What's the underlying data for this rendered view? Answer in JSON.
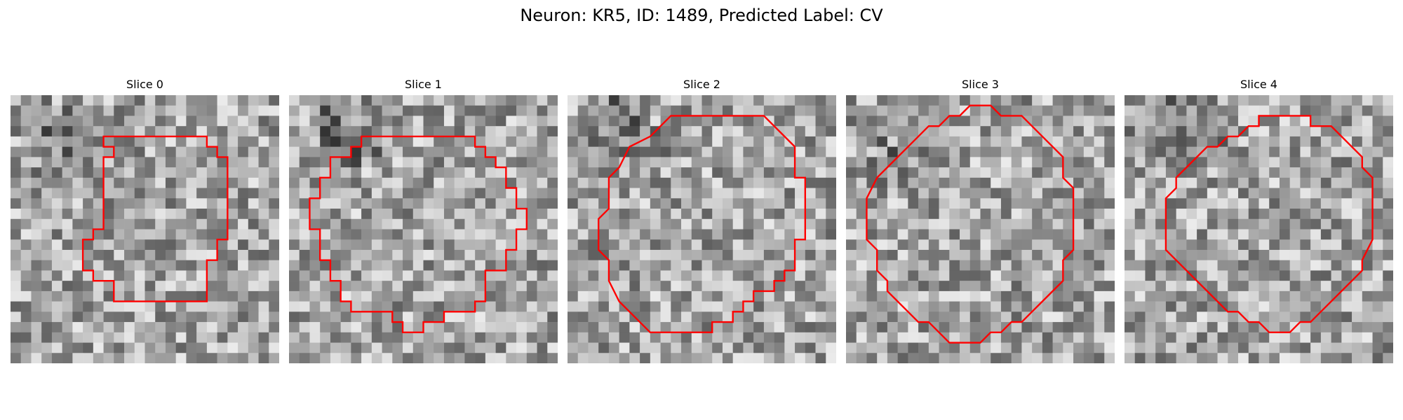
{
  "figure": {
    "title": "Neuron: KR5, ID: 1489, Predicted Label: CV"
  },
  "style": {
    "contour_color": "#ff0000",
    "background": "#ffffff"
  },
  "panels": [
    {
      "title": "Slice 0",
      "contour": [
        [
          10,
          4
        ],
        [
          19,
          4
        ],
        [
          19,
          5
        ],
        [
          20,
          5
        ],
        [
          20,
          6
        ],
        [
          21,
          6
        ],
        [
          21,
          14
        ],
        [
          20,
          14
        ],
        [
          20,
          16
        ],
        [
          19,
          16
        ],
        [
          19,
          20
        ],
        [
          10,
          20
        ],
        [
          10,
          18
        ],
        [
          8,
          18
        ],
        [
          8,
          17
        ],
        [
          7,
          17
        ],
        [
          7,
          14
        ],
        [
          8,
          14
        ],
        [
          8,
          13
        ],
        [
          9,
          13
        ],
        [
          9,
          6
        ],
        [
          10,
          6
        ],
        [
          10,
          5
        ],
        [
          9,
          5
        ],
        [
          9,
          4
        ]
      ]
    },
    {
      "title": "Slice 1",
      "contour": [
        [
          8,
          4
        ],
        [
          18,
          4
        ],
        [
          18,
          5
        ],
        [
          19,
          5
        ],
        [
          19,
          6
        ],
        [
          20,
          6
        ],
        [
          20,
          7
        ],
        [
          21,
          7
        ],
        [
          21,
          9
        ],
        [
          22,
          9
        ],
        [
          22,
          11
        ],
        [
          23,
          11
        ],
        [
          23,
          13
        ],
        [
          22,
          13
        ],
        [
          22,
          15
        ],
        [
          21,
          15
        ],
        [
          21,
          17
        ],
        [
          19,
          17
        ],
        [
          19,
          20
        ],
        [
          18,
          20
        ],
        [
          18,
          21
        ],
        [
          15,
          21
        ],
        [
          15,
          22
        ],
        [
          13,
          22
        ],
        [
          13,
          23
        ],
        [
          11,
          23
        ],
        [
          11,
          22
        ],
        [
          10,
          22
        ],
        [
          10,
          21
        ],
        [
          6,
          21
        ],
        [
          6,
          20
        ],
        [
          5,
          20
        ],
        [
          5,
          18
        ],
        [
          4,
          18
        ],
        [
          4,
          16
        ],
        [
          3,
          16
        ],
        [
          3,
          13
        ],
        [
          2,
          13
        ],
        [
          2,
          10
        ],
        [
          3,
          10
        ],
        [
          3,
          8
        ],
        [
          4,
          8
        ],
        [
          4,
          6
        ],
        [
          6,
          6
        ],
        [
          6,
          5
        ],
        [
          7,
          5
        ],
        [
          7,
          4
        ]
      ]
    },
    {
      "title": "Slice 2",
      "contour": [
        [
          10,
          2
        ],
        [
          19,
          2
        ],
        [
          22,
          5
        ],
        [
          22,
          8
        ],
        [
          23,
          8
        ],
        [
          23,
          14
        ],
        [
          22,
          14
        ],
        [
          22,
          17
        ],
        [
          21,
          17
        ],
        [
          21,
          18
        ],
        [
          20,
          18
        ],
        [
          20,
          19
        ],
        [
          18,
          19
        ],
        [
          18,
          20
        ],
        [
          17,
          20
        ],
        [
          17,
          21
        ],
        [
          16,
          21
        ],
        [
          16,
          22
        ],
        [
          14,
          22
        ],
        [
          14,
          23
        ],
        [
          8,
          23
        ],
        [
          6,
          21
        ],
        [
          5,
          20
        ],
        [
          4,
          18
        ],
        [
          4,
          16
        ],
        [
          3,
          15
        ],
        [
          3,
          12
        ],
        [
          4,
          11
        ],
        [
          4,
          8
        ],
        [
          5,
          7
        ],
        [
          6,
          5
        ],
        [
          8,
          4
        ],
        [
          9,
          3
        ]
      ]
    },
    {
      "title": "Slice 3",
      "contour": [
        [
          12,
          1
        ],
        [
          14,
          1
        ],
        [
          15,
          2
        ],
        [
          17,
          2
        ],
        [
          19,
          4
        ],
        [
          21,
          6
        ],
        [
          21,
          7
        ],
        [
          21,
          8
        ],
        [
          22,
          9
        ],
        [
          22,
          10
        ],
        [
          22,
          11
        ],
        [
          22,
          13
        ],
        [
          22,
          15
        ],
        [
          21,
          16
        ],
        [
          21,
          18
        ],
        [
          20,
          19
        ],
        [
          19,
          20
        ],
        [
          18,
          21
        ],
        [
          17,
          22
        ],
        [
          16,
          22
        ],
        [
          15,
          23
        ],
        [
          14,
          23
        ],
        [
          13,
          24
        ],
        [
          10,
          24
        ],
        [
          9,
          23
        ],
        [
          8,
          22
        ],
        [
          7,
          22
        ],
        [
          6,
          21
        ],
        [
          5,
          20
        ],
        [
          4,
          19
        ],
        [
          4,
          18
        ],
        [
          3,
          17
        ],
        [
          3,
          16
        ],
        [
          3,
          15
        ],
        [
          2,
          14
        ],
        [
          2,
          12
        ],
        [
          2,
          10
        ],
        [
          3,
          8
        ],
        [
          4,
          7
        ],
        [
          5,
          6
        ],
        [
          6,
          5
        ],
        [
          7,
          4
        ],
        [
          8,
          3
        ],
        [
          9,
          3
        ],
        [
          10,
          2
        ],
        [
          11,
          2
        ]
      ]
    },
    {
      "title": "Slice 4",
      "contour": [
        [
          15,
          2
        ],
        [
          18,
          2
        ],
        [
          18,
          3
        ],
        [
          19,
          3
        ],
        [
          20,
          3
        ],
        [
          22,
          5
        ],
        [
          23,
          6
        ],
        [
          23,
          7
        ],
        [
          24,
          8
        ],
        [
          24,
          9
        ],
        [
          24,
          10
        ],
        [
          24,
          12
        ],
        [
          24,
          14
        ],
        [
          23,
          16
        ],
        [
          23,
          17
        ],
        [
          22,
          18
        ],
        [
          21,
          19
        ],
        [
          20,
          20
        ],
        [
          19,
          21
        ],
        [
          18,
          22
        ],
        [
          17,
          22
        ],
        [
          16,
          23
        ],
        [
          14,
          23
        ],
        [
          13,
          22
        ],
        [
          12,
          22
        ],
        [
          11,
          21
        ],
        [
          10,
          21
        ],
        [
          9,
          20
        ],
        [
          8,
          19
        ],
        [
          7,
          18
        ],
        [
          6,
          17
        ],
        [
          5,
          16
        ],
        [
          4,
          15
        ],
        [
          4,
          14
        ],
        [
          4,
          12
        ],
        [
          4,
          10
        ],
        [
          5,
          9
        ],
        [
          5,
          8
        ],
        [
          6,
          7
        ],
        [
          7,
          6
        ],
        [
          8,
          5
        ],
        [
          9,
          5
        ],
        [
          10,
          4
        ],
        [
          11,
          4
        ],
        [
          12,
          3
        ],
        [
          13,
          3
        ],
        [
          13,
          2
        ],
        [
          14,
          2
        ]
      ]
    }
  ]
}
